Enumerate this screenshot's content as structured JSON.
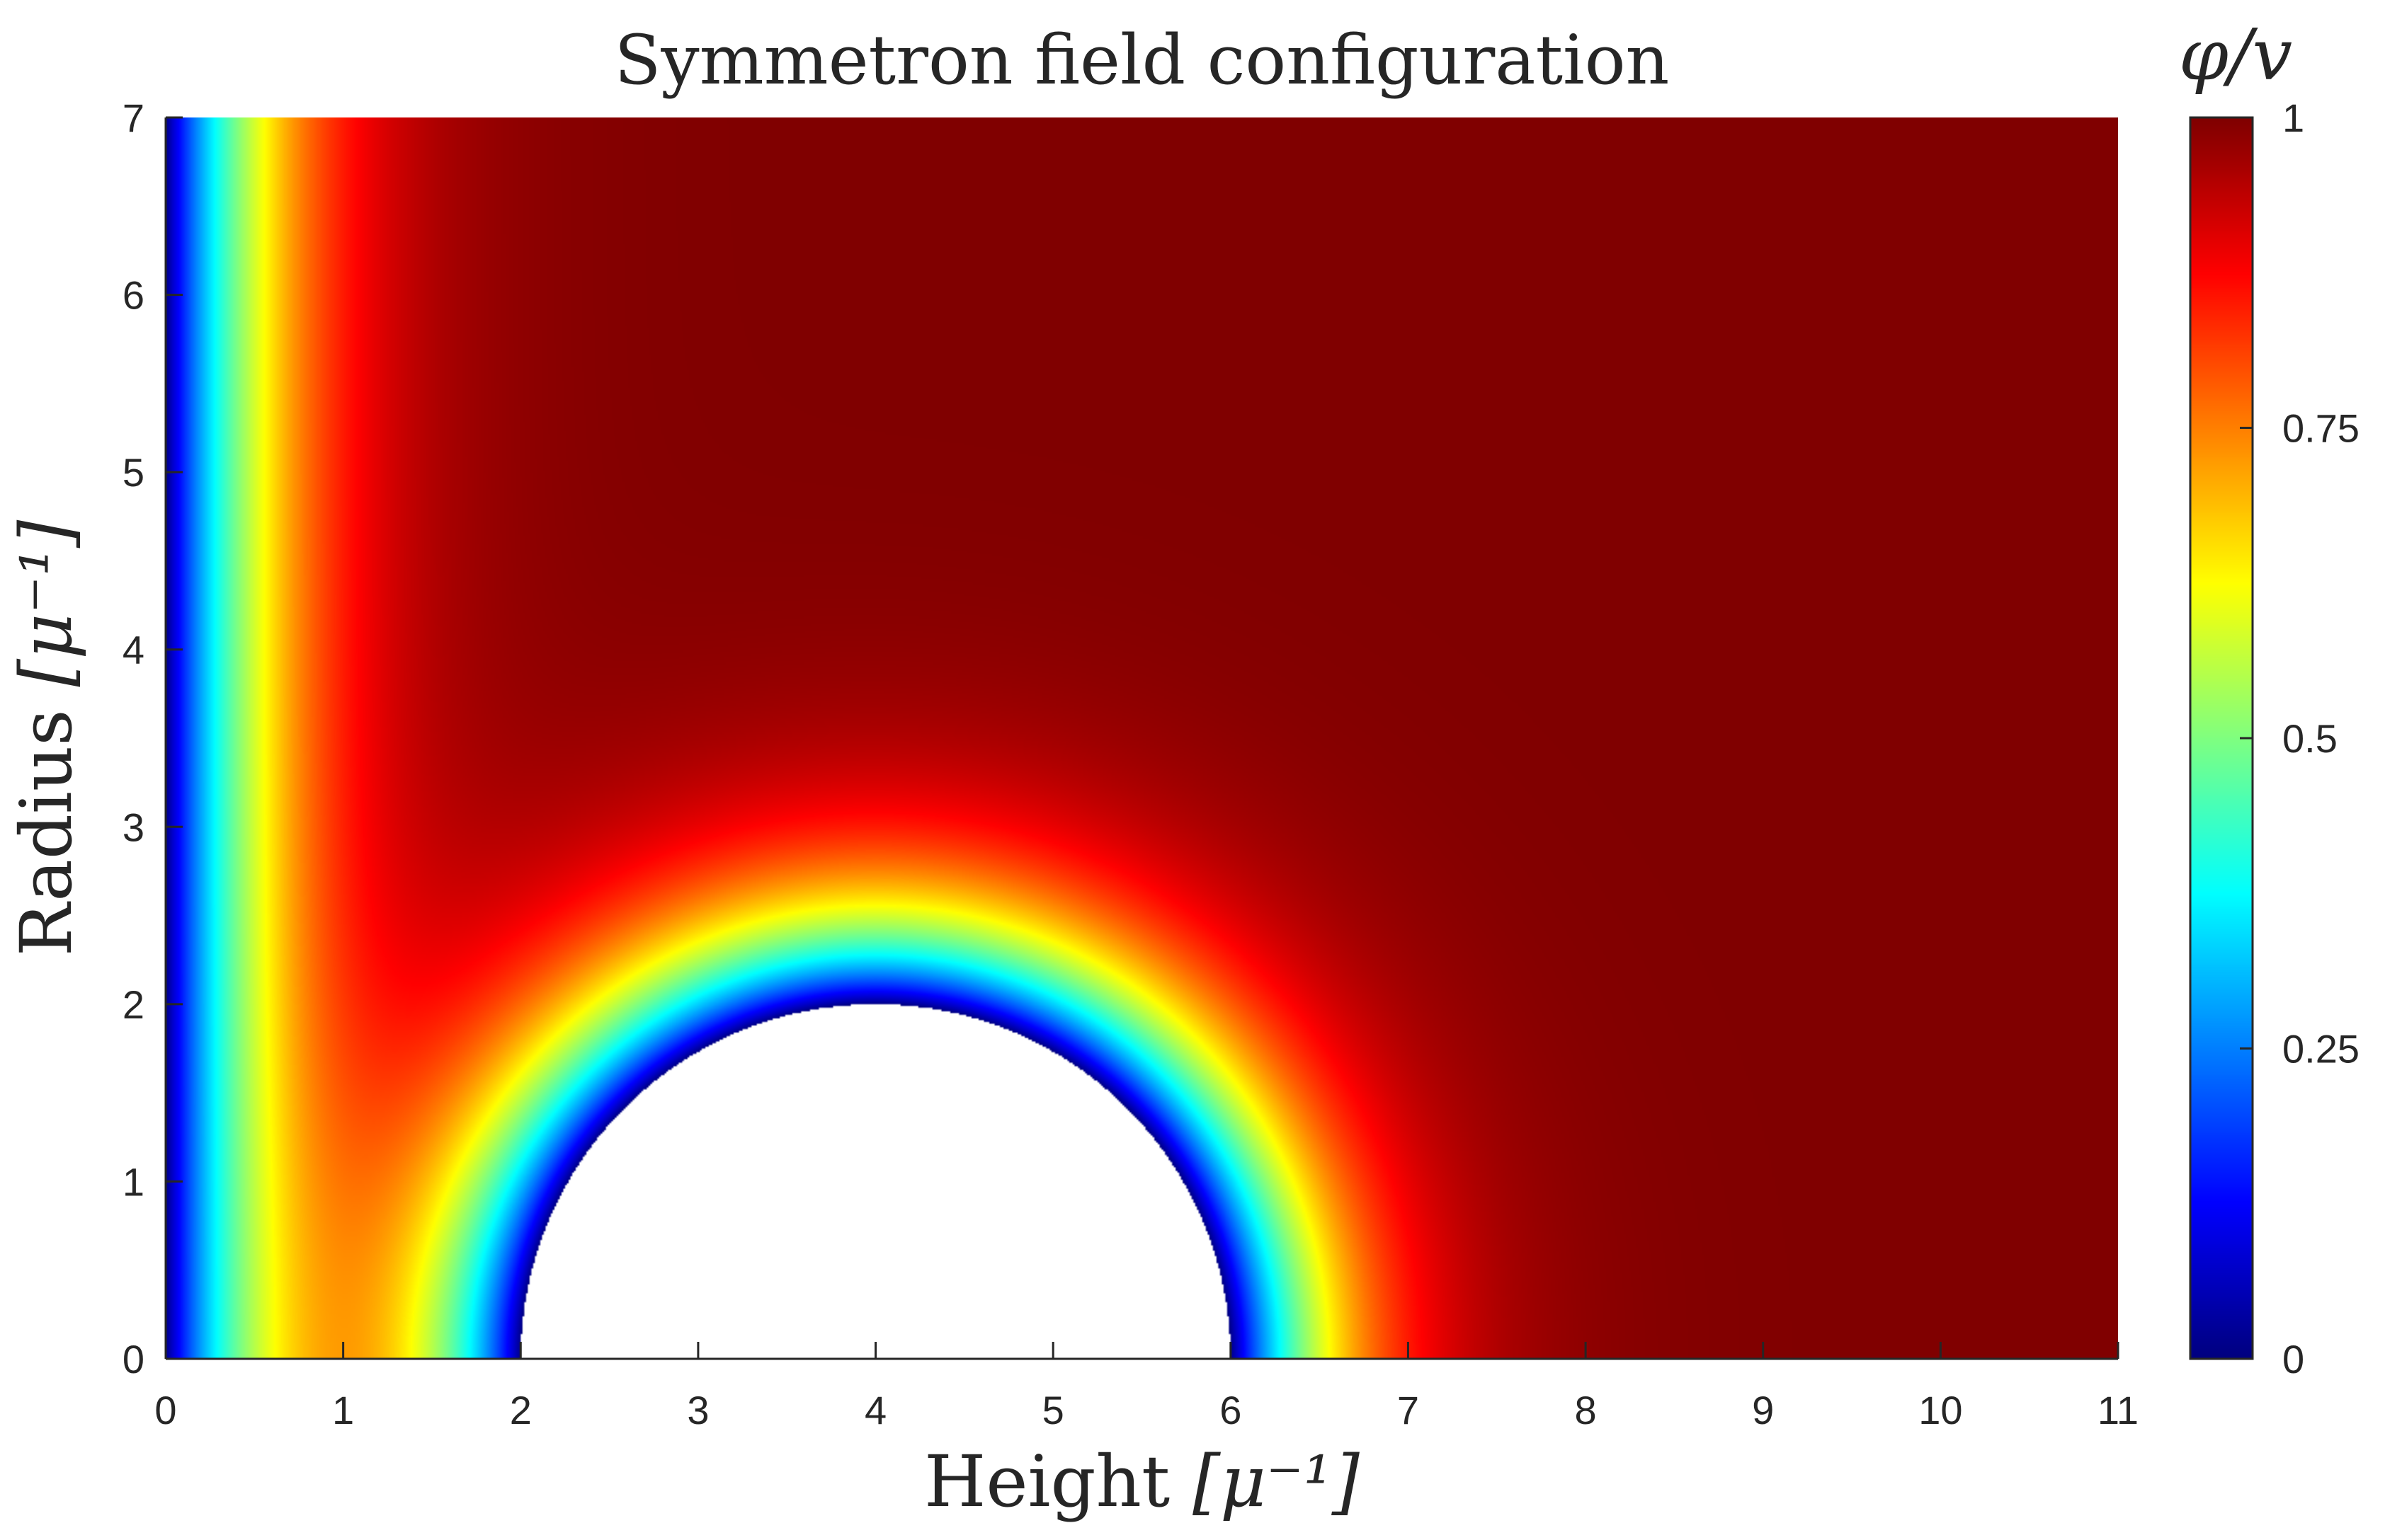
{
  "chart_data": {
    "type": "heatmap",
    "title": "Symmetron field configuration",
    "xlabel": "Height",
    "xlabel_unit": "[μ⁻¹]",
    "ylabel": "Radius",
    "ylabel_unit": "[μ⁻¹]",
    "xlim": [
      0,
      11
    ],
    "ylim": [
      0,
      7
    ],
    "xticks": [
      0,
      1,
      2,
      3,
      4,
      5,
      6,
      7,
      8,
      9,
      10,
      11
    ],
    "yticks": [
      0,
      1,
      2,
      3,
      4,
      5,
      6,
      7
    ],
    "colorbar": {
      "label": "φ/v",
      "range": [
        0,
        1
      ],
      "ticks": [
        0,
        0.25,
        0.5,
        0.75,
        1
      ],
      "tick_labels": [
        "0",
        "0.25",
        "0.5",
        "0.75",
        "1"
      ],
      "colormap": "jet"
    },
    "obstacles": [
      {
        "shape": "half-disk",
        "center_x": 4,
        "center_y": 0,
        "radius": 2
      }
    ],
    "boundary_walls": [
      {
        "x": 0,
        "value": 0
      }
    ],
    "field_value_far": 1,
    "grid": false
  }
}
